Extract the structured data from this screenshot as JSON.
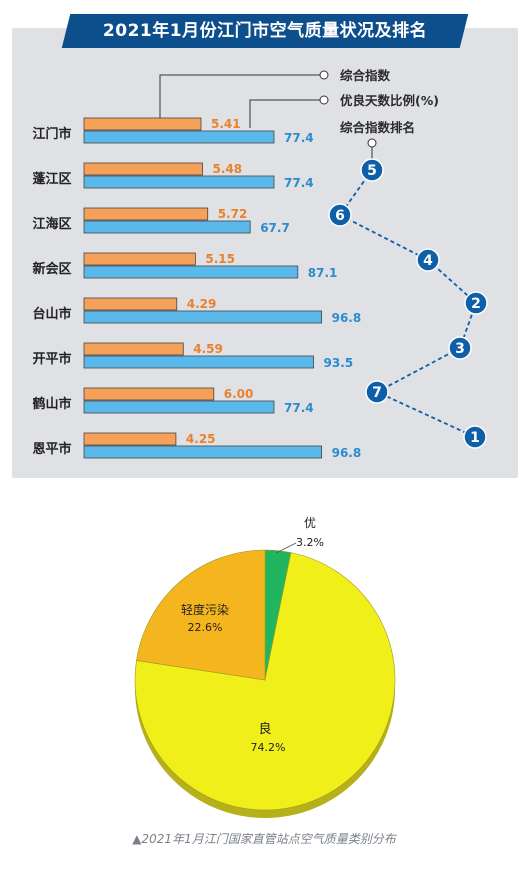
{
  "top_chart": {
    "title": "2021年1月份江门市空气质量状况及排名",
    "legend": {
      "composite_label": "综合指数",
      "ratio_label": "优良天数比例(%)",
      "rank_label": "综合指数排名"
    },
    "colors": {
      "composite": "#f5a15a",
      "ratio": "#5bb8ea",
      "rank": "#0d5fa8",
      "composite_text": "#e8822e",
      "ratio_text": "#2a8ccf"
    }
  },
  "chart_data": [
    {
      "type": "bar",
      "title": "2021年1月份江门市空气质量状况及排名",
      "categories": [
        "江门市",
        "蓬江区",
        "江海区",
        "新会区",
        "台山市",
        "开平市",
        "鹤山市",
        "恩平市"
      ],
      "series": [
        {
          "name": "综合指数",
          "values": [
            "5.41",
            "5.48",
            "5.72",
            "5.15",
            "4.29",
            "4.59",
            "6.00",
            "4.25"
          ]
        },
        {
          "name": "优良天数比例(%)",
          "values": [
            "77.4",
            "77.4",
            "67.7",
            "87.1",
            "96.8",
            "93.5",
            "77.4",
            "96.8"
          ]
        },
        {
          "name": "综合指数排名",
          "values": [
            "",
            "5",
            "6",
            "4",
            "2",
            "3",
            "7",
            "1"
          ]
        }
      ]
    },
    {
      "type": "pie",
      "slices": [
        {
          "label": "良",
          "percent_label": "74.2%",
          "value": 74.2,
          "color": "#f0ef1a"
        },
        {
          "label": "轻度污染",
          "percent_label": "22.6%",
          "value": 22.6,
          "color": "#f5b51e"
        },
        {
          "label": "优",
          "percent_label": "3.2%",
          "value": 3.2,
          "color": "#22b560"
        }
      ]
    }
  ],
  "caption": "▲2021年1月江门国家直管站点空气质量类别分布"
}
